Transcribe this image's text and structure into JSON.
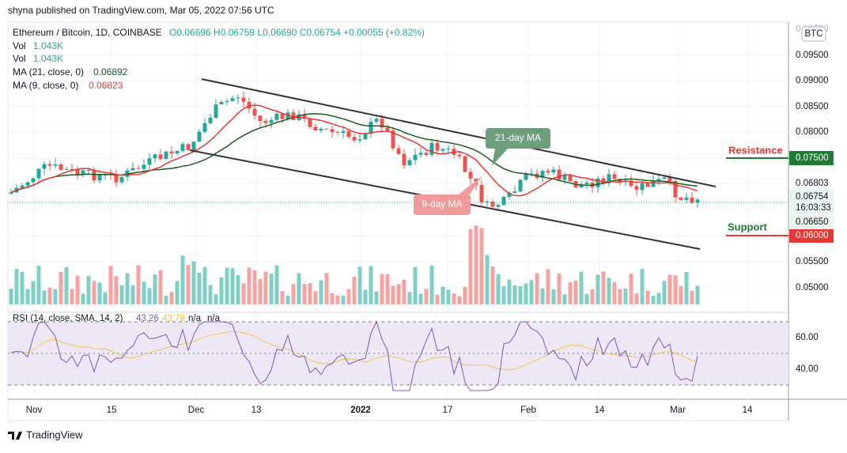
{
  "header": {
    "publisher": "shyna published on TradingView.com, Mar 05, 2022 07:56 UTC"
  },
  "legend": {
    "symbol": "Ethereum / Bitcoin, 1D, COINBASE",
    "ohlc": "O0.06696 H0.06759 L0.06690 C0.06754 +0.00055 (+0.82%)",
    "vol_1_label": "Vol",
    "vol_1_value": "1.043K",
    "vol_2_label": "Vol",
    "vol_2_value": "1.043K",
    "ma21_label": "MA (21, close, 0)",
    "ma21_value": "0.06892",
    "ma9_label": "MA (9, close, 0)",
    "ma9_value": "0.06823"
  },
  "currency_badge": "BTC",
  "price_axis": {
    "top": "0.10000",
    "l1": "0.09500",
    "l2": "0.09000",
    "l3": "0.08500",
    "l4": "0.08000",
    "resistance_level": "0.07500",
    "ma_level": "0.06803",
    "last_price": "0.06754",
    "countdown": "16:03:33",
    "level_low": "0.06650",
    "support_level": "0.06000",
    "l5": "0.05500",
    "l6": "0.05000"
  },
  "annotations": {
    "ma21": "21-day MA",
    "ma9": "9-day MA",
    "resistance": "Resistance",
    "support": "Support"
  },
  "rsi": {
    "legend": "RSI (14, close, SMA, 14, 2)",
    "value1": "43.26",
    "value2": "43.78",
    "na1": "n/a",
    "na2": "n/a",
    "upper": "60.00",
    "lower": "40.00"
  },
  "time_axis": [
    "Nov",
    "15",
    "Dec",
    "13",
    "2022",
    "17",
    "Feb",
    "14",
    "Mar",
    "14"
  ],
  "footer": {
    "brand": "TradingView"
  }
}
